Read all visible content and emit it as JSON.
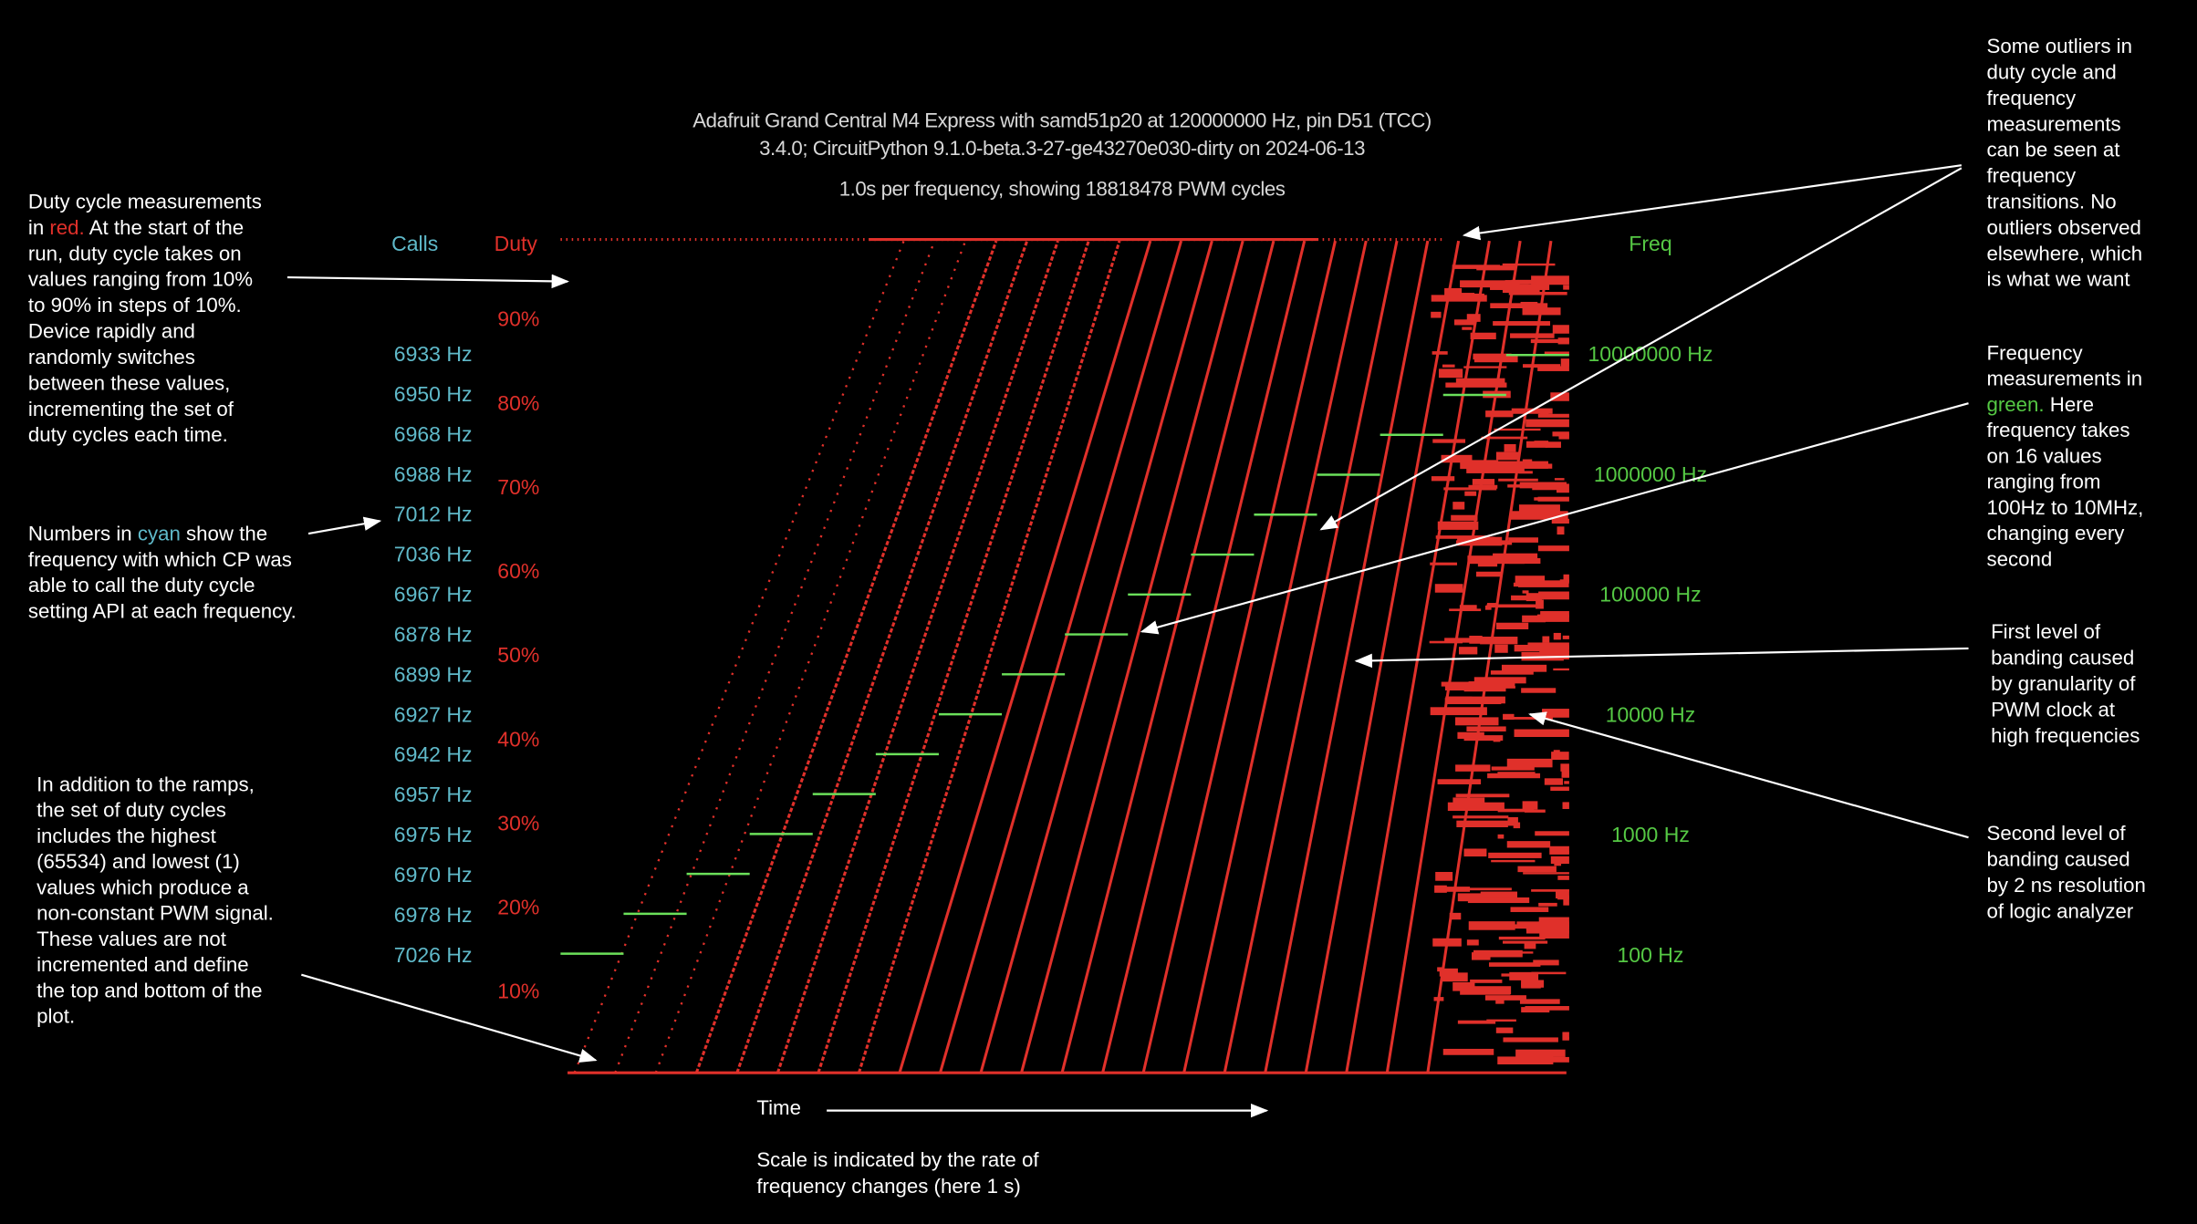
{
  "header": {
    "title_lines": [
      "Adafruit Grand Central M4 Express with samd51p20 at 120000000 Hz, pin D51 (TCC)",
      "3.4.0; CircuitPython 9.1.0-beta.3-27-ge43270e030-dirty on 2024-06-13",
      "1.0s per frequency, showing 18818478 PWM cycles"
    ]
  },
  "plot": {
    "calls_label": "Calls",
    "duty_label": "Duty",
    "freq_label": "Freq",
    "time_label": "Time",
    "duty_ticks": [
      "90%",
      "80%",
      "70%",
      "60%",
      "50%",
      "40%",
      "30%",
      "20%",
      "10%"
    ],
    "call_rates": [
      "6933 Hz",
      "6950 Hz",
      "6968 Hz",
      "6988 Hz",
      "7012 Hz",
      "7036 Hz",
      "6967 Hz",
      "6878 Hz",
      "6899 Hz",
      "6927 Hz",
      "6942 Hz",
      "6957 Hz",
      "6975 Hz",
      "6970 Hz",
      "6978 Hz",
      "7026 Hz"
    ],
    "freq_ticks": [
      "10000000 Hz",
      "1000000 Hz",
      "100000 Hz",
      "10000 Hz",
      "1000 Hz",
      "100 Hz"
    ]
  },
  "annotations": {
    "duty": [
      "Duty cycle measurements",
      [
        "in ",
        "red.",
        "  At the start of the"
      ],
      "run, duty cycle takes on",
      "values ranging from 10%",
      "to 90% in steps of 10%.",
      "Device rapidly and",
      "randomly switches",
      "between these values,",
      "incrementing the set of",
      "duty cycles each time."
    ],
    "calls": [
      [
        "Numbers in ",
        "cyan",
        " show the"
      ],
      "frequency with which CP was",
      "able to call the duty cycle",
      "setting API at each frequency."
    ],
    "extremes": [
      "In addition to the ramps,",
      "the set of duty cycles",
      "includes the highest",
      "(65534) and lowest (1)",
      "values which produce a",
      "non-constant PWM signal.",
      "These values are not",
      "incremented and define",
      "the top and bottom of the",
      "plot."
    ],
    "outliers": [
      "Some outliers in",
      "duty cycle and",
      "frequency",
      "measurements",
      "can be seen at",
      "frequency",
      "transitions.  No",
      "outliers observed",
      "elsewhere, which",
      "is what we want"
    ],
    "frequency": [
      "Frequency",
      "measurements in",
      [
        "green.",
        "  Here"
      ],
      "frequency takes",
      "on 16 values",
      "ranging from",
      "100Hz to 10MHz,",
      "changing every",
      "second"
    ],
    "banding1": [
      "First level of",
      "banding caused",
      "by granularity of",
      "PWM clock at",
      "high frequencies"
    ],
    "banding2": [
      "Second level of",
      "banding caused",
      "by 2 ns resolution",
      "of logic analyzer"
    ],
    "scale": [
      "Scale is indicated by the rate of",
      "frequency changes (here 1 s)"
    ]
  }
}
